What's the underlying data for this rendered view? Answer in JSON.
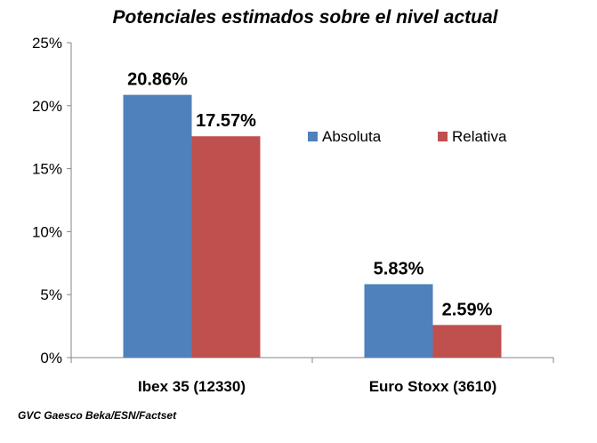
{
  "chart_data": {
    "type": "bar",
    "title": "Potenciales estimados sobre el nivel actual",
    "categories": [
      "Ibex 35 (12330)",
      "Euro Stoxx (3610)"
    ],
    "series": [
      {
        "name": "Absoluta",
        "color": "#4F81BD",
        "values": [
          20.86,
          5.83
        ],
        "labels": [
          "20.86%",
          "5.83%"
        ]
      },
      {
        "name": "Relativa",
        "color": "#C0504D",
        "values": [
          17.57,
          2.59
        ],
        "labels": [
          "17.57%",
          "2.59%"
        ]
      }
    ],
    "ylim": [
      0,
      25
    ],
    "yticks": [
      0,
      5,
      10,
      15,
      20,
      25
    ],
    "ytick_labels": [
      "0%",
      "5%",
      "10%",
      "15%",
      "20%",
      "25%"
    ],
    "xlabel": "",
    "ylabel": "",
    "legend_position": "right",
    "grid": false
  },
  "source": "GVC Gaesco Beka/ESN/Factset"
}
